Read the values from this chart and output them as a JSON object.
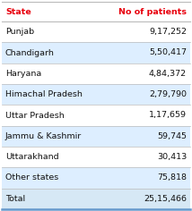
{
  "header": [
    "State",
    "No of patients"
  ],
  "header_color": "#e8000d",
  "rows": [
    [
      "Punjab",
      "9,17,252"
    ],
    [
      "Chandigarh",
      "5,50,417"
    ],
    [
      "Haryana",
      "4,84,372"
    ],
    [
      "Himachal Pradesh",
      "2,79,790"
    ],
    [
      "Uttar Pradesh",
      "1,17,659"
    ],
    [
      "Jammu & Kashmir",
      "59,745"
    ],
    [
      "Uttarakhand",
      "30,413"
    ],
    [
      "Other states",
      "75,818"
    ],
    [
      "Total",
      "25,15,466"
    ]
  ],
  "row_colors": [
    "#ffffff",
    "#ddeeff",
    "#ffffff",
    "#ddeeff",
    "#ffffff",
    "#ddeeff",
    "#ffffff",
    "#ddeeff",
    "#d6e8f5"
  ],
  "border_color": "#bbbbbb",
  "bottom_border_color": "#6699cc",
  "text_color": "#111111",
  "bg_color": "#ffffff",
  "font_size": 6.8
}
